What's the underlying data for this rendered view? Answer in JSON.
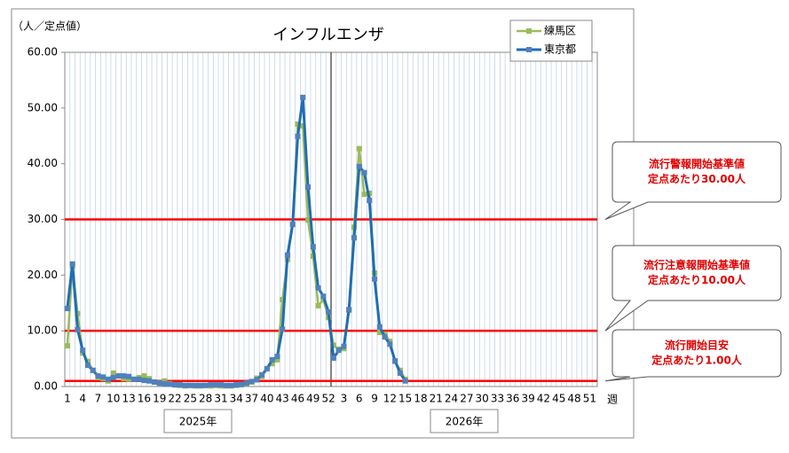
{
  "chart_data": {
    "type": "line",
    "title": "インフルエンザ",
    "y_label": "（人／定点値）",
    "x_label": "週",
    "ylim": [
      0,
      60
    ],
    "yticks": [
      {
        "value": 0,
        "label": "0.00"
      },
      {
        "value": 10,
        "label": "10.00"
      },
      {
        "value": 20,
        "label": "20.00"
      },
      {
        "value": 30,
        "label": "30.00"
      },
      {
        "value": 40,
        "label": "40.00"
      },
      {
        "value": 50,
        "label": "50.00"
      },
      {
        "value": 60,
        "label": "60.00"
      }
    ],
    "categories": [
      "1",
      null,
      null,
      "4",
      null,
      null,
      "7",
      null,
      null,
      "10",
      null,
      null,
      "13",
      null,
      null,
      "16",
      null,
      null,
      "19",
      null,
      null,
      "22",
      null,
      null,
      "25",
      null,
      null,
      "28",
      null,
      null,
      "31",
      null,
      null,
      "34",
      null,
      null,
      "37",
      null,
      null,
      "40",
      null,
      null,
      "43",
      null,
      null,
      "46",
      null,
      null,
      "49",
      null,
      null,
      "52",
      null,
      null,
      "3",
      null,
      null,
      "6",
      null,
      null,
      "9",
      null,
      null,
      "12",
      null,
      null,
      "15",
      null,
      null,
      "18",
      null,
      null,
      "21",
      null,
      null,
      "24",
      null,
      null,
      "27",
      null,
      null,
      "30",
      null,
      null,
      "33",
      null,
      null,
      "36",
      null,
      null,
      "39",
      null,
      null,
      "42",
      null,
      null,
      "45",
      null,
      null,
      "48",
      null,
      null,
      "51",
      null
    ],
    "x_groups": [
      "2025年",
      "2026年"
    ],
    "series": [
      {
        "name": "練馬区",
        "color": "#9bbb59",
        "values": [
          7.3,
          21.6,
          13.1,
          6.0,
          4.5,
          2.9,
          1.6,
          1.4,
          1.0,
          2.4,
          1.9,
          1.4,
          1.3,
          1.3,
          1.6,
          1.9,
          1.4,
          0.8,
          0.6,
          1.0,
          0.5,
          0.3,
          0.2,
          0.1,
          0.2,
          0.1,
          0.1,
          0.2,
          0.1,
          0.2,
          0.1,
          0.1,
          0.1,
          0.2,
          0.3,
          0.5,
          0.8,
          1.5,
          1.8,
          3.2,
          4.1,
          4.8,
          15.6,
          22.8,
          29.1,
          47.1,
          46.8,
          29.9,
          23.4,
          14.5,
          15.6,
          12.4,
          7.4,
          6.7,
          6.8,
          13.7,
          28.6,
          42.7,
          34.5,
          34.7,
          20.4,
          9.7,
          9.4,
          8.1,
          4.5,
          2.9,
          1.3,
          null,
          null,
          null,
          null,
          null,
          null,
          null,
          null,
          null,
          null,
          null,
          null,
          null,
          null,
          null,
          null,
          null,
          null,
          null,
          null,
          null,
          null,
          null,
          null,
          null,
          null,
          null,
          null,
          null,
          null,
          null,
          null,
          null,
          null,
          null,
          null,
          null
        ]
      },
      {
        "name": "東京都",
        "color": "#4f81bd",
        "values": [
          14.0,
          22.0,
          10.2,
          6.5,
          3.8,
          2.9,
          1.9,
          1.7,
          1.3,
          1.6,
          1.9,
          1.9,
          1.8,
          1.3,
          1.3,
          1.1,
          1.0,
          0.8,
          0.6,
          0.5,
          0.4,
          0.3,
          0.3,
          0.2,
          0.2,
          0.2,
          0.2,
          0.2,
          0.3,
          0.3,
          0.3,
          0.2,
          0.2,
          0.3,
          0.4,
          0.6,
          0.9,
          1.2,
          2.1,
          3.2,
          4.8,
          5.4,
          10.3,
          23.6,
          29.1,
          44.9,
          51.9,
          35.8,
          25.1,
          17.7,
          16.2,
          13.4,
          5.1,
          6.5,
          7.2,
          13.8,
          26.7,
          39.5,
          38.4,
          33.4,
          19.3,
          10.7,
          8.9,
          7.6,
          4.6,
          2.4,
          1.0,
          null,
          null,
          null,
          null,
          null,
          null,
          null,
          null,
          null,
          null,
          null,
          null,
          null,
          null,
          null,
          null,
          null,
          null,
          null,
          null,
          null,
          null,
          null,
          null,
          null,
          null,
          null,
          null,
          null,
          null,
          null,
          null,
          null,
          null,
          null,
          null,
          null
        ]
      }
    ],
    "thresholds": [
      {
        "value": 30,
        "color": "#ff0000",
        "label": [
          "流行警報開始基準値",
          "定点あたり30.00人"
        ]
      },
      {
        "value": 10,
        "color": "#ff0000",
        "label": [
          "流行注意報開始基準値",
          "定点あたり10.00人"
        ]
      },
      {
        "value": 1,
        "color": "#ff0000",
        "label": [
          "流行開始目安",
          "定点あたり1.00人"
        ]
      }
    ]
  }
}
